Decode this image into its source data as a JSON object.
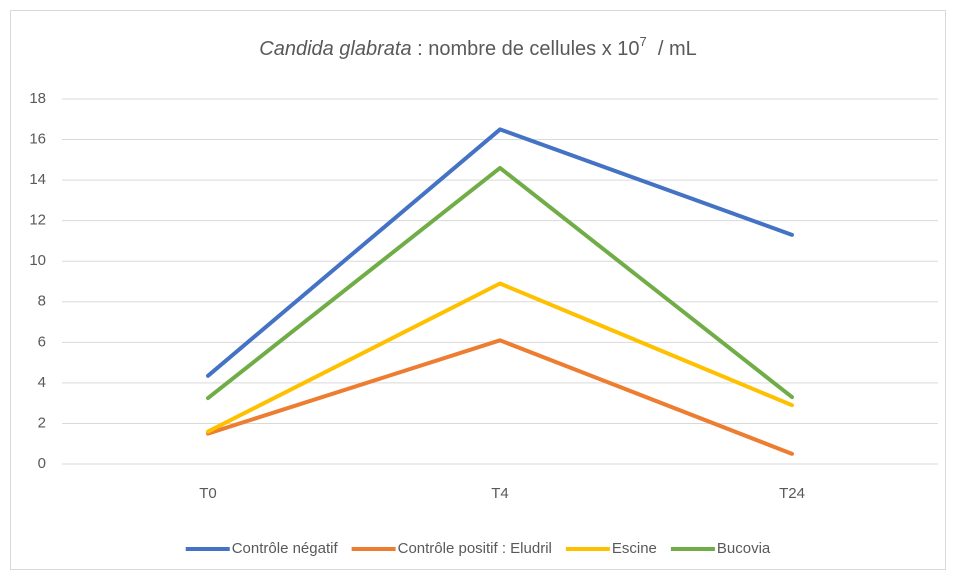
{
  "chart_data": {
    "type": "line",
    "title": [
      "Candida glabrata",
      " : nombre de cellules x 10",
      "7",
      "  / mL"
    ],
    "categories": [
      "T0",
      "T4",
      "T24"
    ],
    "series": [
      {
        "name": "Contrôle négatif",
        "color": "#4472c4",
        "values": [
          4.35,
          16.5,
          11.3
        ]
      },
      {
        "name": "Contrôle positif : Eludril",
        "color": "#ed7d31",
        "values": [
          1.5,
          6.1,
          0.5
        ]
      },
      {
        "name": "Escine",
        "color": "#ffc000",
        "values": [
          1.6,
          8.9,
          2.9
        ]
      },
      {
        "name": "Bucovia",
        "color": "#70ad47",
        "values": [
          3.25,
          14.6,
          3.3
        ]
      }
    ],
    "ylim": [
      0,
      18
    ],
    "yticks": [
      0,
      2,
      4,
      6,
      8,
      10,
      12,
      14,
      16,
      18
    ],
    "grid": true,
    "legend": "bottom"
  }
}
